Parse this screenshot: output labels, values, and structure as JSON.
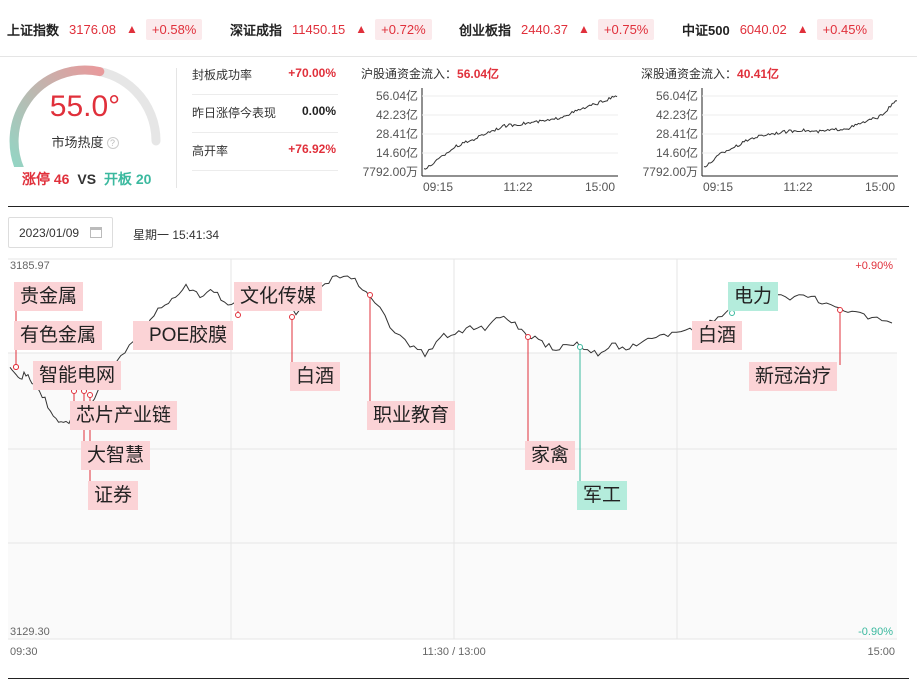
{
  "indices": [
    {
      "name": "上证指数",
      "value": "3176.08",
      "arrow": "▲",
      "change": "+0.58%"
    },
    {
      "name": "深证成指",
      "value": "11450.15",
      "arrow": "▲",
      "change": "+0.72%"
    },
    {
      "name": "创业板指",
      "value": "2440.37",
      "arrow": "▲",
      "change": "+0.75%"
    },
    {
      "name": "中证500",
      "value": "6040.02",
      "arrow": "▲",
      "change": "+0.45%"
    }
  ],
  "heat": {
    "value": "55.0°",
    "level": 0.55,
    "label": "市场热度",
    "help": "?",
    "limit_up_label": "涨停",
    "limit_up_count": "46",
    "vs": "VS",
    "open_label": "开板",
    "open_count": "20"
  },
  "stats": [
    {
      "label": "封板成功率",
      "value": "+70.00%",
      "color": "red"
    },
    {
      "label": "昨日涨停今表现",
      "value": "0.00%",
      "color": "black"
    },
    {
      "label": "高开率",
      "value": "+76.92%",
      "color": "red"
    }
  ],
  "hk_north": {
    "sh": {
      "title": "沪股通资金流入：",
      "amount": "56.04亿"
    },
    "sz": {
      "title": "深股通资金流入：",
      "amount": "40.41亿"
    },
    "y_labels": [
      "56.04亿",
      "42.23亿",
      "28.41亿",
      "14.60亿",
      "7792.00万"
    ],
    "x_labels": [
      "09:15",
      "11:22",
      "15:00"
    ]
  },
  "date": {
    "value": "2023/01/09",
    "weekday_time": "星期一 15:41:34"
  },
  "main_chart": {
    "y_max": "3185.97",
    "y_min": "3129.30",
    "pct_max": "+0.90%",
    "pct_min": "-0.90%",
    "x_labels": [
      "09:30",
      "11:30 / 13:00",
      "15:00"
    ]
  },
  "topics": [
    {
      "label": "贵金属",
      "color": "pink"
    },
    {
      "label": "有色金属",
      "color": "pink"
    },
    {
      "label": "智能电网",
      "color": "pink"
    },
    {
      "label": "芯片产业链",
      "color": "pink"
    },
    {
      "label": "大智慧",
      "color": "pink"
    },
    {
      "label": "证券",
      "color": "pink"
    },
    {
      "label": "POE胶膜",
      "color": "pink"
    },
    {
      "label": "文化传媒",
      "color": "pink"
    },
    {
      "label": "白酒",
      "color": "pink"
    },
    {
      "label": "职业教育",
      "color": "pink"
    },
    {
      "label": "家禽",
      "color": "pink"
    },
    {
      "label": "军工",
      "color": "green"
    },
    {
      "label": "白酒",
      "color": "pink"
    },
    {
      "label": "电力",
      "color": "green"
    },
    {
      "label": "新冠治疗",
      "color": "pink"
    }
  ],
  "colors": {
    "up": "#e0303b",
    "down": "#3bb99f",
    "tag_pink": "#fbd3d6",
    "tag_green": "#b4ecdc"
  }
}
